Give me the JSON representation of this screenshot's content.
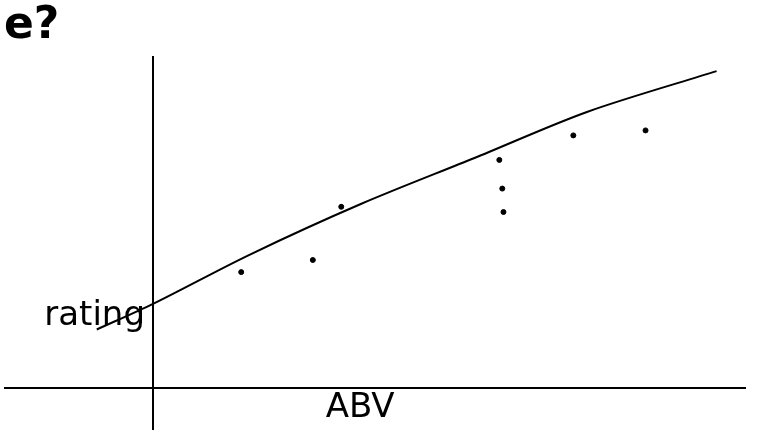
{
  "chart_data": {
    "type": "scatter",
    "title": "e?",
    "x_label": "ABV",
    "y_label": "rating",
    "xlim": [
      -2.5,
      10
    ],
    "ylim": [
      -1.5,
      12
    ],
    "xticks": [],
    "yticks": [],
    "tick_labels": false,
    "grid": false,
    "series": [
      {
        "type": "scatter",
        "color": "#000000",
        "marker": "circle",
        "x": [
          1.49,
          2.7,
          3.18,
          5.85,
          5.9,
          5.92,
          7.1,
          8.32
        ],
        "values": [
          4.19,
          4.63,
          6.56,
          8.26,
          7.22,
          6.37,
          9.15,
          9.33
        ]
      },
      {
        "type": "line",
        "color": "#000000",
        "line_style": "solid",
        "x": [
          -0.95,
          0,
          1.62,
          3.52,
          5.43,
          7.33,
          9.52
        ],
        "values": [
          2.11,
          3.04,
          4.81,
          6.67,
          8.33,
          10.0,
          11.48
        ]
      }
    ]
  }
}
